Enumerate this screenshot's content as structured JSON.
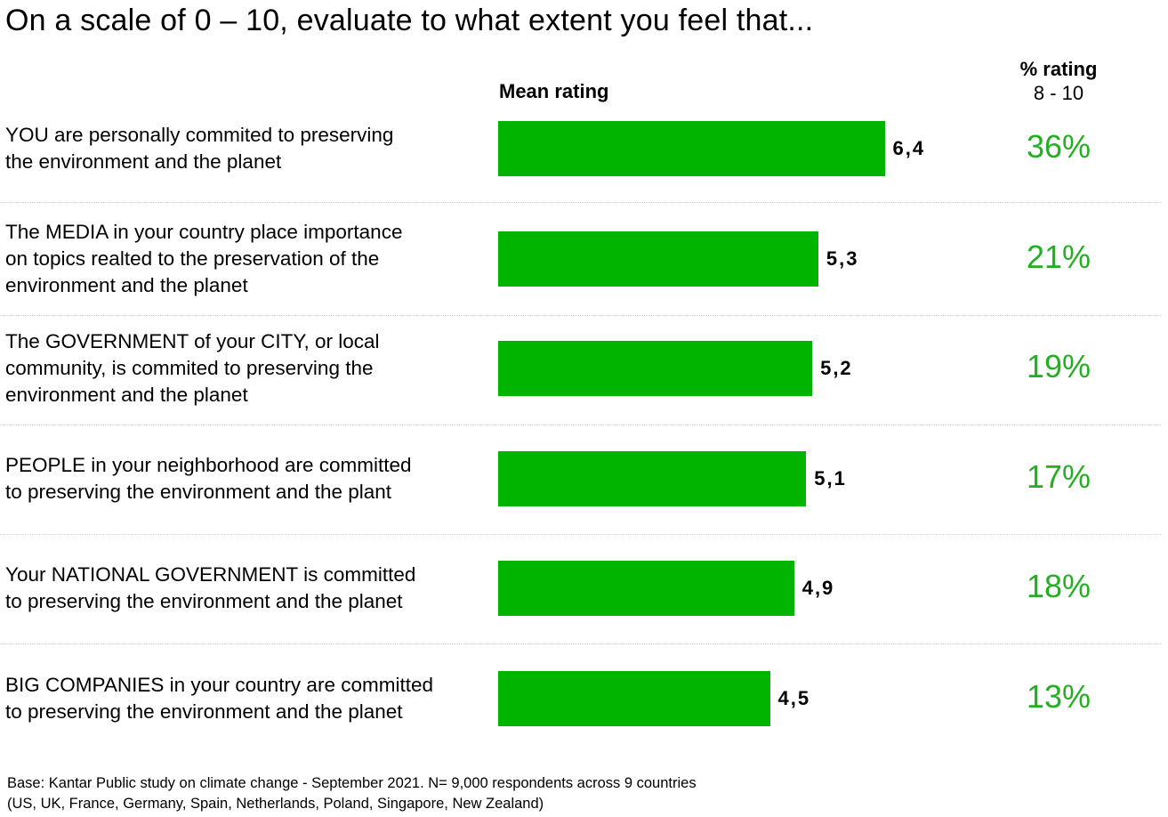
{
  "title": "On a scale of 0 – 10, evaluate to what extent you feel that...",
  "headers": {
    "mean": "Mean rating",
    "pct_line1": "% rating",
    "pct_line2": "8 - 10"
  },
  "colors": {
    "bar": "#00b400",
    "percent_text": "#22b022"
  },
  "chart_data": {
    "type": "bar",
    "orientation": "horizontal",
    "categories": [
      "YOU are personally commited to preserving\nthe environment and the planet",
      "The MEDIA in your country place importance\non topics realted to the preservation of the\nenvironment and the planet",
      "The GOVERNMENT of your CITY, or local\ncommunity, is commited to preserving the\nenvironment and the planet",
      "PEOPLE in your neighborhood are committed\nto preserving the environment and the plant",
      "Your NATIONAL GOVERNMENT is committed\nto preserving the environment and the planet",
      "BIG COMPANIES in your country are committed\nto preserving the environment and the planet"
    ],
    "series": [
      {
        "name": "Mean rating",
        "values": [
          6.4,
          5.3,
          5.2,
          5.1,
          4.9,
          4.5
        ],
        "labels": [
          "6,4",
          "5,3",
          "5,2",
          "5,1",
          "4,9",
          "4,5"
        ]
      },
      {
        "name": "% rating 8 - 10",
        "values": [
          36,
          21,
          19,
          17,
          18,
          13
        ],
        "labels": [
          "36%",
          "21%",
          "19%",
          "17%",
          "18%",
          "13%"
        ]
      }
    ],
    "xlim": [
      0,
      10
    ],
    "grid": false,
    "legend": "none"
  },
  "footnote": "Base: Kantar Public study on climate change - September 2021. N= 9,000 respondents across 9 countries\n(US, UK, France, Germany, Spain, Netherlands, Poland, Singapore, New Zealand)"
}
